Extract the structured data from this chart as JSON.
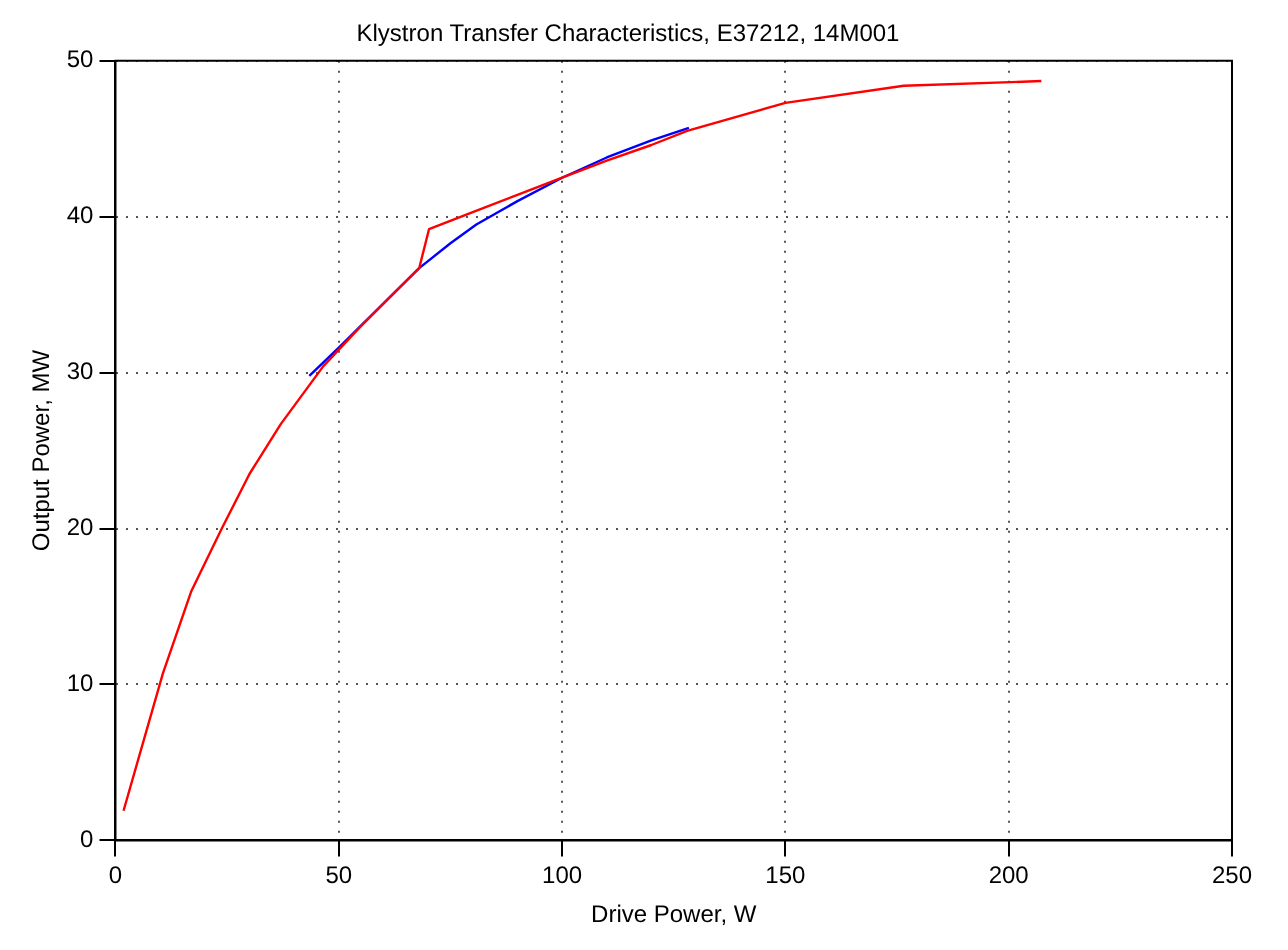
{
  "chart_data": {
    "type": "line",
    "title": "Klystron Transfer Characteristics, E37212, 14M001",
    "xlabel": "Drive Power, W",
    "ylabel": "Output Power, MW",
    "series": [
      {
        "color": "#ff0000",
        "x": [
          1.8,
          10.6,
          17,
          23.8,
          30,
          37,
          46.5,
          55,
          62,
          68,
          70.2,
          80,
          90,
          100,
          110,
          120,
          128,
          150,
          176.5,
          207.3
        ],
        "values": [
          1.9,
          10.7,
          16,
          20,
          23.5,
          26.7,
          30.4,
          33,
          35,
          36.7,
          39.2,
          40.3,
          41.4,
          42.5,
          43.6,
          44.6,
          45.5,
          47.3,
          48.4,
          48.7
        ]
      },
      {
        "color": "#0000ff",
        "x": [
          43.4,
          50,
          68,
          75,
          80.8,
          90,
          100,
          110,
          120,
          128.4
        ],
        "values": [
          29.8,
          31.6,
          36.7,
          38.3,
          39.5,
          41,
          42.5,
          43.8,
          44.9,
          45.7
        ]
      }
    ],
    "xlim": [
      0,
      250
    ],
    "xticks": [
      0,
      50,
      100,
      150,
      200,
      250
    ],
    "ylim": [
      0,
      50
    ],
    "yticks": [
      0,
      10,
      20,
      30,
      40,
      50
    ],
    "grid": true,
    "legend": false,
    "marker": "none",
    "line_style": "solid"
  }
}
